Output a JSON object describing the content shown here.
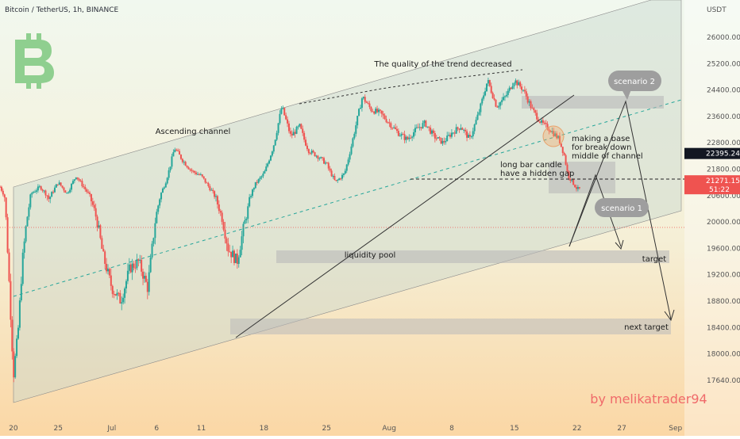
{
  "header": {
    "symbol_line": "Bitcoin / TetherUS, 1h, BINANCE"
  },
  "chart_data": {
    "type": "candlestick",
    "title": "Bitcoin / TetherUS, 1h, BINANCE",
    "y_unit": "USDT",
    "ylim": [
      17400,
      26600
    ],
    "y_ticks": [
      "26000.00",
      "25200.00",
      "24400.00",
      "23600.00",
      "22800.00",
      "21800.00",
      "20600.00",
      "20000.00",
      "19600.00",
      "19200.00",
      "18800.00",
      "18400.00",
      "18000.00",
      "17640.00"
    ],
    "y_tick_values": [
      26000,
      25200,
      24400,
      23600,
      22800,
      21800,
      20600,
      20000,
      19600,
      19200,
      18800,
      18400,
      18000,
      17640
    ],
    "x_ticks": [
      "20",
      "25",
      "Jul",
      "6",
      "11",
      "18",
      "25",
      "Aug",
      "8",
      "15",
      "22",
      "27",
      "Sep"
    ],
    "x_tick_days": [
      0,
      5,
      11,
      16,
      21,
      28,
      35,
      42,
      49,
      56,
      63,
      68,
      74
    ],
    "x_range_days": [
      -1.5,
      75
    ],
    "price_path": [
      [
        -1.5,
        21000
      ],
      [
        -1,
        20600
      ],
      [
        0,
        17700
      ],
      [
        0.5,
        18300
      ],
      [
        1,
        19400
      ],
      [
        2,
        20700
      ],
      [
        3,
        21000
      ],
      [
        4,
        20500
      ],
      [
        5,
        21200
      ],
      [
        6,
        20700
      ],
      [
        7,
        21500
      ],
      [
        8,
        20900
      ],
      [
        9,
        20300
      ],
      [
        10,
        19500
      ],
      [
        11,
        19000
      ],
      [
        12,
        18800
      ],
      [
        13,
        19300
      ],
      [
        14,
        19400
      ],
      [
        15,
        19000
      ],
      [
        16,
        20200
      ],
      [
        17,
        21200
      ],
      [
        18,
        22600
      ],
      [
        19,
        22100
      ],
      [
        20,
        21700
      ],
      [
        21,
        21500
      ],
      [
        22,
        20900
      ],
      [
        23,
        20300
      ],
      [
        24,
        19600
      ],
      [
        25,
        19400
      ],
      [
        26,
        20100
      ],
      [
        27,
        21100
      ],
      [
        28,
        21600
      ],
      [
        29,
        22600
      ],
      [
        30,
        23900
      ],
      [
        31,
        23000
      ],
      [
        32,
        23300
      ],
      [
        33,
        22500
      ],
      [
        34,
        22300
      ],
      [
        35,
        22000
      ],
      [
        36,
        21200
      ],
      [
        37,
        21600
      ],
      [
        38,
        23000
      ],
      [
        39,
        24200
      ],
      [
        40,
        23800
      ],
      [
        41,
        23700
      ],
      [
        42,
        23400
      ],
      [
        43,
        23100
      ],
      [
        44,
        22900
      ],
      [
        45,
        23200
      ],
      [
        46,
        23400
      ],
      [
        47,
        23000
      ],
      [
        48,
        22800
      ],
      [
        49,
        23100
      ],
      [
        50,
        23300
      ],
      [
        51,
        22900
      ],
      [
        52,
        23700
      ],
      [
        53,
        24700
      ],
      [
        54,
        23900
      ],
      [
        55,
        24200
      ],
      [
        56,
        24700
      ],
      [
        57,
        24400
      ],
      [
        58,
        23800
      ],
      [
        59,
        23400
      ],
      [
        60,
        23200
      ],
      [
        61,
        22900
      ],
      [
        61.6,
        22300
      ],
      [
        62,
        21500
      ],
      [
        63,
        20900
      ],
      [
        63.4,
        20900
      ]
    ],
    "current_price": "21271.15",
    "current_price_value": 21271.15,
    "countdown": "51:22",
    "marked_level": "22395.24",
    "marked_level_value": 22395.24,
    "annotations": {
      "trend_quality": "The quality of the trend decreased",
      "ascending_channel": "Ascending channel",
      "making_base": [
        "making a base",
        "for break down",
        "middle of channel"
      ],
      "long_bar": [
        "long bar candle",
        "have a hidden gap"
      ],
      "liquidity_pool": "liquidity pool",
      "target": "target",
      "next_target": "next target",
      "scenario_1": "scenario 1",
      "scenario_2": "scenario 2",
      "watermark": "by melikatrader94"
    },
    "colors": {
      "up": "#26a69a",
      "down": "#ef5350",
      "channel_fill": "#c8d6cf",
      "zone_fill": "#b9b9b9",
      "bubble_fill": "#9e9e9e",
      "logo": "#8fcf8f",
      "watermark": "#f06a6a",
      "price_label": "#ef5350",
      "level_label": "#131722"
    },
    "legend": "none",
    "grid": false
  }
}
